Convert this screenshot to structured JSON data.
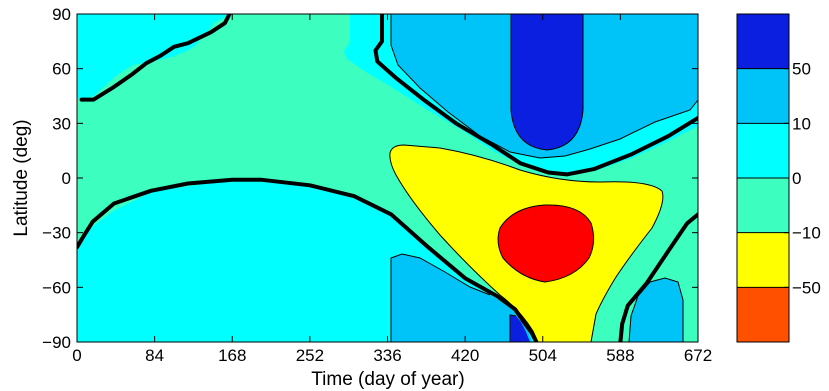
{
  "chart_data": {
    "type": "contour",
    "xlabel": "Time (day of year)",
    "ylabel": "Latitude (deg)",
    "xlim": [
      0,
      672
    ],
    "ylim": [
      -90,
      90
    ],
    "x_ticks": [
      0,
      84,
      168,
      252,
      336,
      420,
      504,
      588,
      672
    ],
    "y_ticks": [
      -90,
      -60,
      -30,
      0,
      30,
      60,
      90
    ],
    "x_tick_labels": [
      "0",
      "84",
      "168",
      "252",
      "336",
      "420",
      "504",
      "588",
      "672"
    ],
    "y_tick_labels": [
      "−90",
      "−60",
      "−30",
      "0",
      "30",
      "60",
      "90"
    ],
    "colorbar": {
      "levels": [
        {
          "label": "50",
          "color": "#0a1fe0"
        },
        {
          "label": "10",
          "color": "#00c3f7"
        },
        {
          "label": "0",
          "color": "#00ffff"
        },
        {
          "label": "−10",
          "color": "#3cffbf"
        },
        {
          "label": "−50",
          "color": "#ffff00"
        },
        {
          "label": "",
          "color": "#ff5000"
        }
      ],
      "tick_labels": [
        "50",
        "10",
        "0",
        "−10",
        "−50"
      ]
    },
    "region_colors": {
      "strong_positive": "#0a1fe0",
      "positive": "#00c3f7",
      "weak_positive": "#00ffff",
      "weak_negative": "#3cffbf",
      "negative": "#ffff00",
      "strong_negative": "#ff0000"
    },
    "zero_contour_paths": [
      [
        [
          0,
          -38
        ],
        [
          7,
          -32
        ],
        [
          17,
          -24
        ],
        [
          40,
          -14
        ],
        [
          80,
          -7
        ],
        [
          120,
          -3
        ],
        [
          168,
          -1
        ],
        [
          200,
          -1
        ],
        [
          252,
          -4
        ],
        [
          300,
          -10
        ],
        [
          340,
          -20
        ],
        [
          380,
          -38
        ],
        [
          420,
          -55
        ],
        [
          455,
          -65
        ],
        [
          474,
          -72
        ],
        [
          485,
          -80
        ],
        [
          492,
          -85
        ],
        [
          497,
          -90
        ]
      ],
      [
        [
          5,
          43
        ],
        [
          18,
          43
        ],
        [
          40,
          50
        ],
        [
          60,
          57
        ],
        [
          75,
          63
        ],
        [
          90,
          67
        ],
        [
          105,
          72
        ],
        [
          120,
          74
        ],
        [
          145,
          80
        ],
        [
          160,
          85
        ],
        [
          165,
          90
        ]
      ],
      [
        [
          330,
          90
        ],
        [
          330,
          75
        ],
        [
          323,
          70
        ],
        [
          325,
          64
        ],
        [
          345,
          55
        ],
        [
          375,
          43
        ],
        [
          410,
          30
        ],
        [
          450,
          18
        ],
        [
          480,
          8
        ],
        [
          510,
          3
        ],
        [
          530,
          2
        ],
        [
          560,
          5
        ],
        [
          600,
          13
        ],
        [
          640,
          23
        ],
        [
          672,
          33
        ]
      ],
      [
        [
          588,
          -90
        ],
        [
          590,
          -80
        ],
        [
          596,
          -70
        ],
        [
          616,
          -58
        ],
        [
          640,
          -40
        ],
        [
          660,
          -25
        ],
        [
          672,
          -20
        ]
      ]
    ]
  }
}
